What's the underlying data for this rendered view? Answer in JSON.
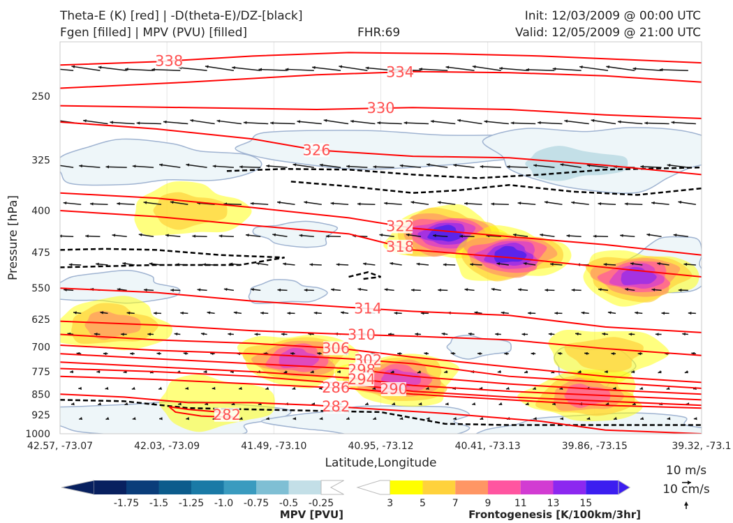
{
  "header": {
    "title_line1": "Theta-E (K) [red] | -D(theta-E)/DZ-[black]",
    "title_line2": "Fgen [filled] | MPV (PVU) [filled]",
    "fhr": "FHR:69",
    "init": "Init: 12/03/2009 @ 00:00 UTC",
    "valid": "Valid: 12/05/2009 @ 21:00 UTC"
  },
  "colors": {
    "theta_e": "#ff0000",
    "theta_e_label": "#ff5050",
    "neg_dtheta_dz": "#000000",
    "mpv_outline": "#9fb3d1",
    "mpv_fill": "#eef6f9",
    "mpv_fill_dark": "#c3dfe7"
  },
  "chart_data": {
    "type": "cross-section",
    "xlabel": "Latitude,Longitude",
    "ylabel": "Pressure [hPa]",
    "x_tick_labels": [
      "42.57, -73.07",
      "42.03, -73.09",
      "41.49, -73.10",
      "40.95, -73.12",
      "40.41, -73.13",
      "39.86, -73.15",
      "39.32, -73.1"
    ],
    "y_ticks": [
      250,
      325,
      400,
      475,
      550,
      625,
      700,
      775,
      850,
      925,
      1000
    ],
    "ylim": [
      1000,
      200
    ],
    "y_scale": "log",
    "theta_e_contours": [
      {
        "label": "338",
        "points": [
          [
            0,
            220
          ],
          [
            0.15,
            217
          ],
          [
            0.3,
            212
          ],
          [
            0.45,
            209
          ],
          [
            0.6,
            210
          ],
          [
            0.75,
            212
          ],
          [
            1,
            218
          ]
        ],
        "label_at": 0.17
      },
      {
        "label": "334",
        "points": [
          [
            0,
            242
          ],
          [
            0.2,
            236
          ],
          [
            0.4,
            229
          ],
          [
            0.55,
            226
          ],
          [
            0.7,
            227
          ],
          [
            0.85,
            230
          ],
          [
            1,
            236
          ]
        ],
        "label_at": 0.53
      },
      {
        "label": "330",
        "points": [
          [
            0,
            260
          ],
          [
            0.2,
            262
          ],
          [
            0.4,
            264
          ],
          [
            0.55,
            262
          ],
          [
            0.7,
            264
          ],
          [
            0.85,
            270
          ],
          [
            1,
            274
          ]
        ],
        "label_at": 0.5
      },
      {
        "label": "326",
        "points": [
          [
            0,
            278
          ],
          [
            0.15,
            286
          ],
          [
            0.3,
            298
          ],
          [
            0.4,
            312
          ],
          [
            0.55,
            320
          ],
          [
            0.7,
            322
          ],
          [
            0.85,
            332
          ],
          [
            1,
            345
          ]
        ],
        "label_at": 0.4
      },
      {
        "label": "322",
        "points": [
          [
            0,
            372
          ],
          [
            0.15,
            380
          ],
          [
            0.3,
            395
          ],
          [
            0.45,
            412
          ],
          [
            0.55,
            430
          ],
          [
            0.7,
            445
          ],
          [
            0.85,
            460
          ],
          [
            1,
            480
          ]
        ],
        "label_at": 0.53
      },
      {
        "label": "318",
        "points": [
          [
            0,
            400
          ],
          [
            0.15,
            410
          ],
          [
            0.3,
            425
          ],
          [
            0.45,
            440
          ],
          [
            0.55,
            470
          ],
          [
            0.7,
            485
          ],
          [
            0.85,
            505
          ],
          [
            1,
            525
          ]
        ],
        "label_at": 0.53
      },
      {
        "label": "314",
        "points": [
          [
            0,
            550
          ],
          [
            0.15,
            560
          ],
          [
            0.3,
            580
          ],
          [
            0.45,
            595
          ],
          [
            0.55,
            605
          ],
          [
            0.7,
            615
          ],
          [
            0.85,
            645
          ],
          [
            1,
            660
          ]
        ],
        "label_at": 0.48
      },
      {
        "label": "310",
        "points": [
          [
            0,
            630
          ],
          [
            0.15,
            640
          ],
          [
            0.3,
            655
          ],
          [
            0.45,
            665
          ],
          [
            0.55,
            670
          ],
          [
            0.7,
            680
          ],
          [
            0.85,
            705
          ],
          [
            1,
            725
          ]
        ],
        "label_at": 0.47
      },
      {
        "label": "306",
        "points": [
          [
            0,
            665
          ],
          [
            0.15,
            680
          ],
          [
            0.3,
            690
          ],
          [
            0.44,
            705
          ],
          [
            0.55,
            730
          ],
          [
            0.7,
            760
          ],
          [
            0.85,
            790
          ],
          [
            1,
            810
          ]
        ],
        "label_at": 0.43
      },
      {
        "label": "302",
        "points": [
          [
            0,
            695
          ],
          [
            0.15,
            710
          ],
          [
            0.3,
            720
          ],
          [
            0.45,
            735
          ],
          [
            0.55,
            750
          ],
          [
            0.7,
            790
          ],
          [
            0.85,
            810
          ],
          [
            1,
            830
          ]
        ],
        "label_at": 0.48
      },
      {
        "label": "298",
        "points": [
          [
            0,
            720
          ],
          [
            0.15,
            735
          ],
          [
            0.3,
            750
          ],
          [
            0.45,
            765
          ],
          [
            0.55,
            790
          ],
          [
            0.7,
            815
          ],
          [
            0.85,
            835
          ],
          [
            1,
            850
          ]
        ],
        "label_at": 0.47
      },
      {
        "label": "294",
        "points": [
          [
            0,
            745
          ],
          [
            0.15,
            760
          ],
          [
            0.3,
            775
          ],
          [
            0.45,
            795
          ],
          [
            0.55,
            820
          ],
          [
            0.7,
            840
          ],
          [
            0.85,
            855
          ],
          [
            1,
            870
          ]
        ],
        "label_at": 0.47
      },
      {
        "label": "290",
        "points": [
          [
            0,
            765
          ],
          [
            0.15,
            775
          ],
          [
            0.3,
            790
          ],
          [
            0.45,
            815
          ],
          [
            0.55,
            840
          ],
          [
            0.7,
            860
          ],
          [
            0.85,
            875
          ],
          [
            1,
            890
          ]
        ],
        "label_at": 0.52
      },
      {
        "label": "286",
        "points": [
          [
            0,
            790
          ],
          [
            0.15,
            800
          ],
          [
            0.3,
            815
          ],
          [
            0.45,
            830
          ],
          [
            0.55,
            850
          ],
          [
            0.7,
            870
          ],
          [
            0.85,
            890
          ],
          [
            1,
            900
          ]
        ],
        "label_at": 0.43
      },
      {
        "label": "282",
        "points": [
          [
            0,
            850
          ],
          [
            0.1,
            860
          ],
          [
            0.2,
            880
          ],
          [
            0.3,
            880
          ],
          [
            0.4,
            890
          ],
          [
            0.5,
            905
          ],
          [
            0.6,
            920
          ],
          [
            0.75,
            950
          ],
          [
            0.85,
            985
          ],
          [
            1,
            1000
          ]
        ],
        "label_at": 0.43
      },
      {
        "label": "282",
        "points": [
          [
            0.17,
            895
          ],
          [
            0.2,
            905
          ],
          [
            0.25,
            915
          ],
          [
            0.27,
            935
          ],
          [
            0.22,
            930
          ],
          [
            0.18,
            915
          ],
          [
            0.17,
            895
          ]
        ],
        "label_at": 0.26
      }
    ],
    "dthetae_dz_contours": [
      {
        "points": [
          [
            0.26,
            340
          ],
          [
            0.35,
            337
          ],
          [
            0.45,
            338
          ],
          [
            0.55,
            345
          ],
          [
            0.65,
            350
          ],
          [
            0.75,
            345
          ],
          [
            0.85,
            338
          ],
          [
            1,
            335
          ]
        ]
      },
      {
        "points": [
          [
            0.36,
            355
          ],
          [
            0.45,
            362
          ],
          [
            0.55,
            372
          ],
          [
            0.62,
            368
          ],
          [
            0.7,
            360
          ],
          [
            0.8,
            370
          ],
          [
            0.9,
            375
          ],
          [
            1,
            365
          ]
        ]
      },
      {
        "points": [
          [
            0,
            470
          ],
          [
            0.07,
            468
          ],
          [
            0.15,
            470
          ],
          [
            0.25,
            480
          ],
          [
            0.35,
            485
          ],
          [
            0.28,
            500
          ],
          [
            0.15,
            500
          ],
          [
            0,
            505
          ]
        ]
      },
      {
        "points": [
          [
            0.45,
            525
          ],
          [
            0.48,
            515
          ],
          [
            0.5,
            525
          ],
          [
            0.47,
            530
          ]
        ]
      },
      {
        "points": [
          [
            0,
            870
          ],
          [
            0.1,
            875
          ],
          [
            0.2,
            900
          ],
          [
            0.3,
            905
          ],
          [
            0.4,
            910
          ],
          [
            0.5,
            915
          ],
          [
            0.6,
            960
          ],
          [
            0.7,
            965
          ],
          [
            0.85,
            965
          ],
          [
            1,
            965
          ]
        ]
      }
    ],
    "frontogenesis_fill": {
      "levels": [
        3,
        5,
        7,
        9,
        11,
        13,
        15
      ],
      "colors": [
        "#ffff00",
        "#ffd23c",
        "#ff9664",
        "#ff55a0",
        "#d23cd2",
        "#8c28f0",
        "#3c1ef0"
      ],
      "features": [
        {
          "x": 0.6,
          "p": 440,
          "peak": 15
        },
        {
          "x": 0.7,
          "p": 480,
          "peak": 15
        },
        {
          "x": 0.9,
          "p": 525,
          "peak": 13
        },
        {
          "x": 0.37,
          "p": 735,
          "peak": 11
        },
        {
          "x": 0.53,
          "p": 800,
          "peak": 11
        },
        {
          "x": 0.82,
          "p": 855,
          "peak": 9
        },
        {
          "x": 0.08,
          "p": 640,
          "peak": 7
        },
        {
          "x": 0.2,
          "p": 400,
          "peak": 5
        },
        {
          "x": 0.24,
          "p": 880,
          "peak": 3
        },
        {
          "x": 0.85,
          "p": 720,
          "peak": 5
        }
      ]
    },
    "mpv_fill": {
      "levels": [
        -1.75,
        -1.5,
        -1.25,
        -1.0,
        -0.75,
        -0.5,
        -0.25
      ],
      "colors": [
        "#08205f",
        "#0a3d7a",
        "#0c5c8c",
        "#1a7aa6",
        "#3a9bbf",
        "#7fbfd4",
        "#c3dfe7"
      ]
    },
    "mpv_colorbar": {
      "label": "MPV [PVU]",
      "tick_labels": [
        "-1.75",
        "-1.5",
        "-1.25",
        "-1.0",
        "-0.75",
        "-0.5",
        "-0.25"
      ]
    },
    "fgen_colorbar": {
      "label": "Frontogenesis [K/100km/3hr]",
      "tick_labels": [
        "3",
        "5",
        "7",
        "9",
        "11",
        "13",
        "15"
      ]
    },
    "wind_vectors": {
      "key_u": "10 m/s",
      "key_w": "10 cm/s"
    }
  }
}
